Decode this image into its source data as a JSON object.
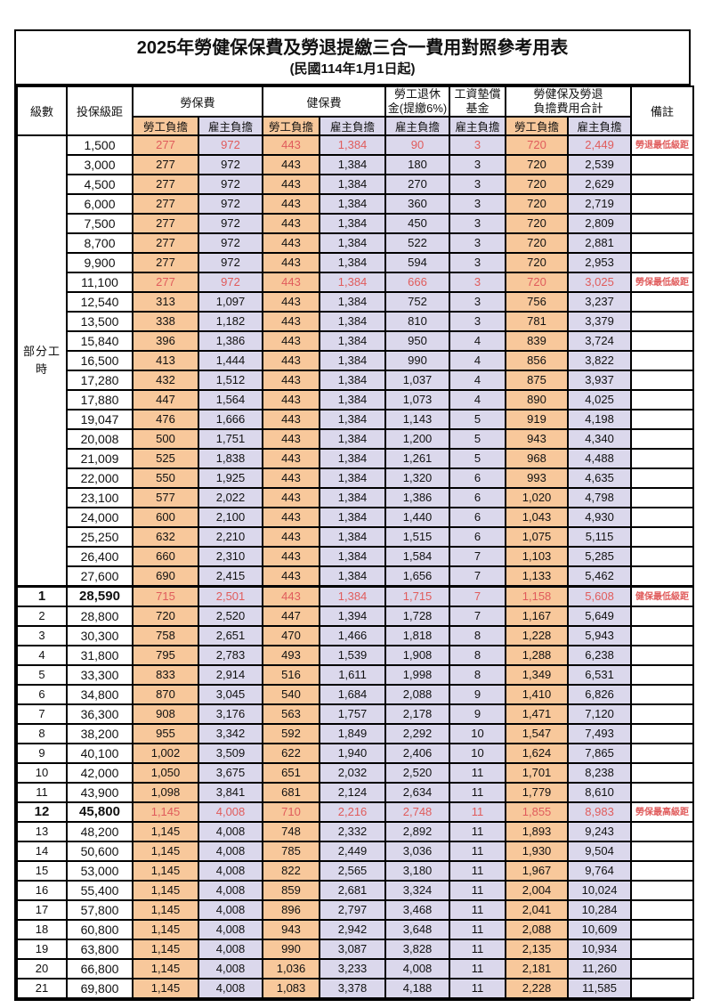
{
  "title": "2025年勞健保保費及勞退提繳三合一費用對照參考用表",
  "subtitle": "(民國114年1月1日起)",
  "header": {
    "level": "級數",
    "bracket": "投保級距",
    "labor_insurance": "勞保費",
    "health_insurance": "健保費",
    "pension": "勞工退休\n金(提繳6%)",
    "wage_fund": "工資墊償\n基金",
    "total": "勞健保及勞退\n負擔費用合計",
    "remark": "備註",
    "employee_share": "勞工負擔",
    "employer_share": "雇主負擔"
  },
  "part_time_label": "部分工時",
  "colors": {
    "employee_column_bg": "#F8C89B",
    "employer_column_bg": "#DBD8EC",
    "highlight_text": "#E05C5C",
    "border": "#000000"
  },
  "rows": [
    {
      "level": "",
      "bracket": "1,500",
      "values": [
        "277",
        "972",
        "443",
        "1,384",
        "90",
        "3",
        "720",
        "2,449"
      ],
      "remark": "勞退最低級距",
      "red": true,
      "emph": false
    },
    {
      "level": "",
      "bracket": "3,000",
      "values": [
        "277",
        "972",
        "443",
        "1,384",
        "180",
        "3",
        "720",
        "2,539"
      ],
      "remark": "",
      "red": false,
      "emph": false
    },
    {
      "level": "",
      "bracket": "4,500",
      "values": [
        "277",
        "972",
        "443",
        "1,384",
        "270",
        "3",
        "720",
        "2,629"
      ],
      "remark": "",
      "red": false,
      "emph": false
    },
    {
      "level": "",
      "bracket": "6,000",
      "values": [
        "277",
        "972",
        "443",
        "1,384",
        "360",
        "3",
        "720",
        "2,719"
      ],
      "remark": "",
      "red": false,
      "emph": false
    },
    {
      "level": "",
      "bracket": "7,500",
      "values": [
        "277",
        "972",
        "443",
        "1,384",
        "450",
        "3",
        "720",
        "2,809"
      ],
      "remark": "",
      "red": false,
      "emph": false
    },
    {
      "level": "",
      "bracket": "8,700",
      "values": [
        "277",
        "972",
        "443",
        "1,384",
        "522",
        "3",
        "720",
        "2,881"
      ],
      "remark": "",
      "red": false,
      "emph": false
    },
    {
      "level": "",
      "bracket": "9,900",
      "values": [
        "277",
        "972",
        "443",
        "1,384",
        "594",
        "3",
        "720",
        "2,953"
      ],
      "remark": "",
      "red": false,
      "emph": false
    },
    {
      "level": "",
      "bracket": "11,100",
      "values": [
        "277",
        "972",
        "443",
        "1,384",
        "666",
        "3",
        "720",
        "3,025"
      ],
      "remark": "勞保最低級距",
      "red": true,
      "emph": false
    },
    {
      "level": "",
      "bracket": "12,540",
      "values": [
        "313",
        "1,097",
        "443",
        "1,384",
        "752",
        "3",
        "756",
        "3,237"
      ],
      "remark": "",
      "red": false,
      "emph": false
    },
    {
      "level": "",
      "bracket": "13,500",
      "values": [
        "338",
        "1,182",
        "443",
        "1,384",
        "810",
        "3",
        "781",
        "3,379"
      ],
      "remark": "",
      "red": false,
      "emph": false
    },
    {
      "level": "",
      "bracket": "15,840",
      "values": [
        "396",
        "1,386",
        "443",
        "1,384",
        "950",
        "4",
        "839",
        "3,724"
      ],
      "remark": "",
      "red": false,
      "emph": false
    },
    {
      "level": "",
      "bracket": "16,500",
      "values": [
        "413",
        "1,444",
        "443",
        "1,384",
        "990",
        "4",
        "856",
        "3,822"
      ],
      "remark": "",
      "red": false,
      "emph": false
    },
    {
      "level": "",
      "bracket": "17,280",
      "values": [
        "432",
        "1,512",
        "443",
        "1,384",
        "1,037",
        "4",
        "875",
        "3,937"
      ],
      "remark": "",
      "red": false,
      "emph": false
    },
    {
      "level": "",
      "bracket": "17,880",
      "values": [
        "447",
        "1,564",
        "443",
        "1,384",
        "1,073",
        "4",
        "890",
        "4,025"
      ],
      "remark": "",
      "red": false,
      "emph": false
    },
    {
      "level": "",
      "bracket": "19,047",
      "values": [
        "476",
        "1,666",
        "443",
        "1,384",
        "1,143",
        "5",
        "919",
        "4,198"
      ],
      "remark": "",
      "red": false,
      "emph": false
    },
    {
      "level": "",
      "bracket": "20,008",
      "values": [
        "500",
        "1,751",
        "443",
        "1,384",
        "1,200",
        "5",
        "943",
        "4,340"
      ],
      "remark": "",
      "red": false,
      "emph": false
    },
    {
      "level": "",
      "bracket": "21,009",
      "values": [
        "525",
        "1,838",
        "443",
        "1,384",
        "1,261",
        "5",
        "968",
        "4,488"
      ],
      "remark": "",
      "red": false,
      "emph": false
    },
    {
      "level": "",
      "bracket": "22,000",
      "values": [
        "550",
        "1,925",
        "443",
        "1,384",
        "1,320",
        "6",
        "993",
        "4,635"
      ],
      "remark": "",
      "red": false,
      "emph": false
    },
    {
      "level": "",
      "bracket": "23,100",
      "values": [
        "577",
        "2,022",
        "443",
        "1,384",
        "1,386",
        "6",
        "1,020",
        "4,798"
      ],
      "remark": "",
      "red": false,
      "emph": false
    },
    {
      "level": "",
      "bracket": "24,000",
      "values": [
        "600",
        "2,100",
        "443",
        "1,384",
        "1,440",
        "6",
        "1,043",
        "4,930"
      ],
      "remark": "",
      "red": false,
      "emph": false
    },
    {
      "level": "",
      "bracket": "25,250",
      "values": [
        "632",
        "2,210",
        "443",
        "1,384",
        "1,515",
        "6",
        "1,075",
        "5,115"
      ],
      "remark": "",
      "red": false,
      "emph": false
    },
    {
      "level": "",
      "bracket": "26,400",
      "values": [
        "660",
        "2,310",
        "443",
        "1,384",
        "1,584",
        "7",
        "1,103",
        "5,285"
      ],
      "remark": "",
      "red": false,
      "emph": false
    },
    {
      "level": "",
      "bracket": "27,600",
      "values": [
        "690",
        "2,415",
        "443",
        "1,384",
        "1,656",
        "7",
        "1,133",
        "5,462"
      ],
      "remark": "",
      "red": false,
      "emph": false
    },
    {
      "level": "1",
      "bracket": "28,590",
      "values": [
        "715",
        "2,501",
        "443",
        "1,384",
        "1,715",
        "7",
        "1,158",
        "5,608"
      ],
      "remark": "健保最低級距",
      "red": true,
      "emph": true
    },
    {
      "level": "2",
      "bracket": "28,800",
      "values": [
        "720",
        "2,520",
        "447",
        "1,394",
        "1,728",
        "7",
        "1,167",
        "5,649"
      ],
      "remark": "",
      "red": false,
      "emph": false
    },
    {
      "level": "3",
      "bracket": "30,300",
      "values": [
        "758",
        "2,651",
        "470",
        "1,466",
        "1,818",
        "8",
        "1,228",
        "5,943"
      ],
      "remark": "",
      "red": false,
      "emph": false
    },
    {
      "level": "4",
      "bracket": "31,800",
      "values": [
        "795",
        "2,783",
        "493",
        "1,539",
        "1,908",
        "8",
        "1,288",
        "6,238"
      ],
      "remark": "",
      "red": false,
      "emph": false
    },
    {
      "level": "5",
      "bracket": "33,300",
      "values": [
        "833",
        "2,914",
        "516",
        "1,611",
        "1,998",
        "8",
        "1,349",
        "6,531"
      ],
      "remark": "",
      "red": false,
      "emph": false
    },
    {
      "level": "6",
      "bracket": "34,800",
      "values": [
        "870",
        "3,045",
        "540",
        "1,684",
        "2,088",
        "9",
        "1,410",
        "6,826"
      ],
      "remark": "",
      "red": false,
      "emph": false
    },
    {
      "level": "7",
      "bracket": "36,300",
      "values": [
        "908",
        "3,176",
        "563",
        "1,757",
        "2,178",
        "9",
        "1,471",
        "7,120"
      ],
      "remark": "",
      "red": false,
      "emph": false
    },
    {
      "level": "8",
      "bracket": "38,200",
      "values": [
        "955",
        "3,342",
        "592",
        "1,849",
        "2,292",
        "10",
        "1,547",
        "7,493"
      ],
      "remark": "",
      "red": false,
      "emph": false
    },
    {
      "level": "9",
      "bracket": "40,100",
      "values": [
        "1,002",
        "3,509",
        "622",
        "1,940",
        "2,406",
        "10",
        "1,624",
        "7,865"
      ],
      "remark": "",
      "red": false,
      "emph": false
    },
    {
      "level": "10",
      "bracket": "42,000",
      "values": [
        "1,050",
        "3,675",
        "651",
        "2,032",
        "2,520",
        "11",
        "1,701",
        "8,238"
      ],
      "remark": "",
      "red": false,
      "emph": false
    },
    {
      "level": "11",
      "bracket": "43,900",
      "values": [
        "1,098",
        "3,841",
        "681",
        "2,124",
        "2,634",
        "11",
        "1,779",
        "8,610"
      ],
      "remark": "",
      "red": false,
      "emph": false
    },
    {
      "level": "12",
      "bracket": "45,800",
      "values": [
        "1,145",
        "4,008",
        "710",
        "2,216",
        "2,748",
        "11",
        "1,855",
        "8,983"
      ],
      "remark": "勞保最高級距",
      "red": true,
      "emph": true
    },
    {
      "level": "13",
      "bracket": "48,200",
      "values": [
        "1,145",
        "4,008",
        "748",
        "2,332",
        "2,892",
        "11",
        "1,893",
        "9,243"
      ],
      "remark": "",
      "red": false,
      "emph": false
    },
    {
      "level": "14",
      "bracket": "50,600",
      "values": [
        "1,145",
        "4,008",
        "785",
        "2,449",
        "3,036",
        "11",
        "1,930",
        "9,504"
      ],
      "remark": "",
      "red": false,
      "emph": false
    },
    {
      "level": "15",
      "bracket": "53,000",
      "values": [
        "1,145",
        "4,008",
        "822",
        "2,565",
        "3,180",
        "11",
        "1,967",
        "9,764"
      ],
      "remark": "",
      "red": false,
      "emph": false
    },
    {
      "level": "16",
      "bracket": "55,400",
      "values": [
        "1,145",
        "4,008",
        "859",
        "2,681",
        "3,324",
        "11",
        "2,004",
        "10,024"
      ],
      "remark": "",
      "red": false,
      "emph": false
    },
    {
      "level": "17",
      "bracket": "57,800",
      "values": [
        "1,145",
        "4,008",
        "896",
        "2,797",
        "3,468",
        "11",
        "2,041",
        "10,284"
      ],
      "remark": "",
      "red": false,
      "emph": false
    },
    {
      "level": "18",
      "bracket": "60,800",
      "values": [
        "1,145",
        "4,008",
        "943",
        "2,942",
        "3,648",
        "11",
        "2,088",
        "10,609"
      ],
      "remark": "",
      "red": false,
      "emph": false
    },
    {
      "level": "19",
      "bracket": "63,800",
      "values": [
        "1,145",
        "4,008",
        "990",
        "3,087",
        "3,828",
        "11",
        "2,135",
        "10,934"
      ],
      "remark": "",
      "red": false,
      "emph": false
    },
    {
      "level": "20",
      "bracket": "66,800",
      "values": [
        "1,145",
        "4,008",
        "1,036",
        "3,233",
        "4,008",
        "11",
        "2,181",
        "11,260"
      ],
      "remark": "",
      "red": false,
      "emph": false
    },
    {
      "level": "21",
      "bracket": "69,800",
      "values": [
        "1,145",
        "4,008",
        "1,083",
        "3,378",
        "4,188",
        "11",
        "2,228",
        "11,585"
      ],
      "remark": "",
      "red": false,
      "emph": false
    }
  ]
}
